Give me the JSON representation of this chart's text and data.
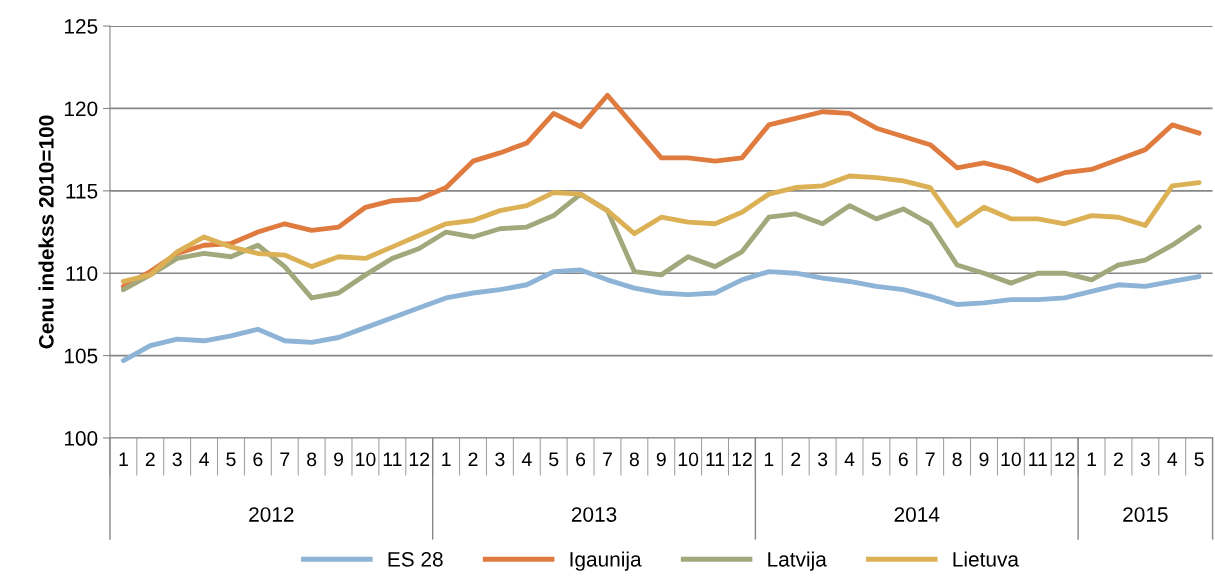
{
  "chart_data": {
    "type": "line",
    "ylabel": "Cenu indekss 2010=100",
    "categories": [
      "1",
      "2",
      "3",
      "4",
      "5",
      "6",
      "7",
      "8",
      "9",
      "10",
      "11",
      "12",
      "1",
      "2",
      "3",
      "4",
      "5",
      "6",
      "7",
      "8",
      "9",
      "10",
      "11",
      "12",
      "1",
      "2",
      "3",
      "4",
      "5",
      "6",
      "7",
      "8",
      "9",
      "10",
      "11",
      "12",
      "1",
      "2",
      "3",
      "4",
      "5"
    ],
    "annotations": [
      "2012",
      "2013",
      "2014",
      "2015"
    ],
    "series": [
      {
        "name": "ES 28",
        "color": "#8db3d6",
        "values": [
          104.7,
          105.6,
          106.0,
          105.9,
          106.2,
          106.6,
          105.9,
          105.8,
          106.1,
          106.7,
          107.3,
          107.9,
          108.5,
          108.8,
          109.0,
          109.3,
          110.1,
          110.2,
          109.6,
          109.1,
          108.8,
          108.7,
          108.8,
          109.6,
          110.1,
          110.0,
          109.7,
          109.5,
          109.2,
          109.0,
          108.6,
          108.1,
          108.2,
          108.4,
          108.4,
          108.5,
          108.9,
          109.3,
          109.2,
          109.5,
          109.8
        ]
      },
      {
        "name": "Igaunija",
        "color": "#e07b3f",
        "values": [
          109.2,
          110.1,
          111.2,
          111.7,
          111.8,
          112.5,
          113.0,
          112.6,
          112.8,
          114.0,
          114.4,
          114.5,
          115.2,
          116.8,
          117.3,
          117.9,
          119.7,
          118.9,
          120.8,
          118.9,
          117.0,
          117.0,
          116.8,
          117.0,
          119.0,
          119.4,
          119.8,
          119.7,
          118.8,
          118.3,
          117.8,
          116.4,
          116.7,
          116.3,
          115.6,
          116.1,
          116.3,
          116.9,
          117.5,
          119.0,
          118.5
        ]
      },
      {
        "name": "Latvija",
        "color": "#a2a87c",
        "values": [
          109.0,
          109.9,
          110.9,
          111.2,
          111.0,
          111.7,
          110.4,
          108.5,
          108.8,
          109.9,
          110.9,
          111.5,
          112.5,
          112.2,
          112.7,
          112.8,
          113.5,
          114.8,
          113.8,
          110.1,
          109.9,
          111.0,
          110.4,
          111.3,
          113.4,
          113.6,
          113.0,
          114.1,
          113.3,
          113.9,
          113.0,
          110.5,
          110.0,
          109.4,
          110.0,
          110.0,
          109.6,
          110.5,
          110.8,
          111.7,
          112.8
        ]
      },
      {
        "name": "Lietuva",
        "color": "#dcb155",
        "values": [
          109.5,
          109.9,
          111.3,
          112.2,
          111.6,
          111.2,
          111.1,
          110.4,
          111.0,
          110.9,
          111.6,
          112.3,
          113.0,
          113.2,
          113.8,
          114.1,
          114.9,
          114.8,
          113.8,
          112.4,
          113.4,
          113.1,
          113.0,
          113.7,
          114.8,
          115.2,
          115.3,
          115.9,
          115.8,
          115.6,
          115.2,
          112.9,
          114.0,
          113.3,
          113.3,
          113.0,
          113.5,
          113.4,
          112.9,
          115.3,
          115.5
        ]
      }
    ],
    "ylim": [
      100,
      125
    ],
    "yticks": [
      100,
      105,
      110,
      115,
      120,
      125
    ],
    "grid": "y",
    "legend": "bottom",
    "marker": "none",
    "line_style": "solid"
  }
}
